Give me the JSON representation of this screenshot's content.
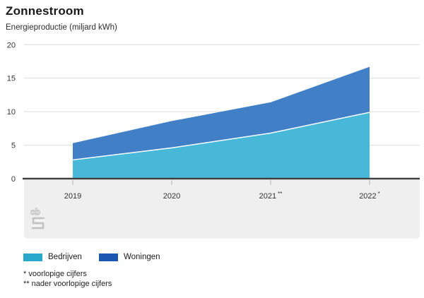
{
  "header": {
    "title": "Zonnestroom",
    "subtitle": "Energieproductie (miljard kWh)"
  },
  "icons": {
    "menu": "hamburger-three-bars",
    "watermark": "cbs-logo-outline"
  },
  "chart_data": {
    "type": "area",
    "stacked": true,
    "title": "Zonnestroom",
    "subtitle": "Energieproductie (miljard kWh)",
    "unit": "miljard kWh",
    "categories": [
      "2019",
      "2020",
      "2021 **",
      "2022 *"
    ],
    "series": [
      {
        "name": "Bedrijven",
        "values": [
          2.8,
          4.6,
          6.8,
          9.9
        ],
        "swatch_color": "#2aa8cc",
        "area_color": "#47b8d8"
      },
      {
        "name": "Woningen",
        "values": [
          2.5,
          4.0,
          4.6,
          6.8
        ],
        "swatch_color": "#1a57b0",
        "area_color": "#4180c6"
      }
    ],
    "totals": [
      5.3,
      8.6,
      11.4,
      16.7
    ],
    "yticks": [
      0,
      5,
      10,
      15,
      20
    ],
    "ylim": [
      0,
      20
    ],
    "grid": true,
    "legend_position": "bottom"
  },
  "footnotes": [
    "* voorlopige cijfers",
    "** nader voorlopige cijfers"
  ],
  "colors": {
    "grid": "#dcdcdc",
    "axis": "#3f3f3f",
    "tick": "#b4b4b4",
    "band": "#efefef",
    "label": "#333333",
    "boundary_line": "#ffffff",
    "logo": "#c2c2c2"
  }
}
